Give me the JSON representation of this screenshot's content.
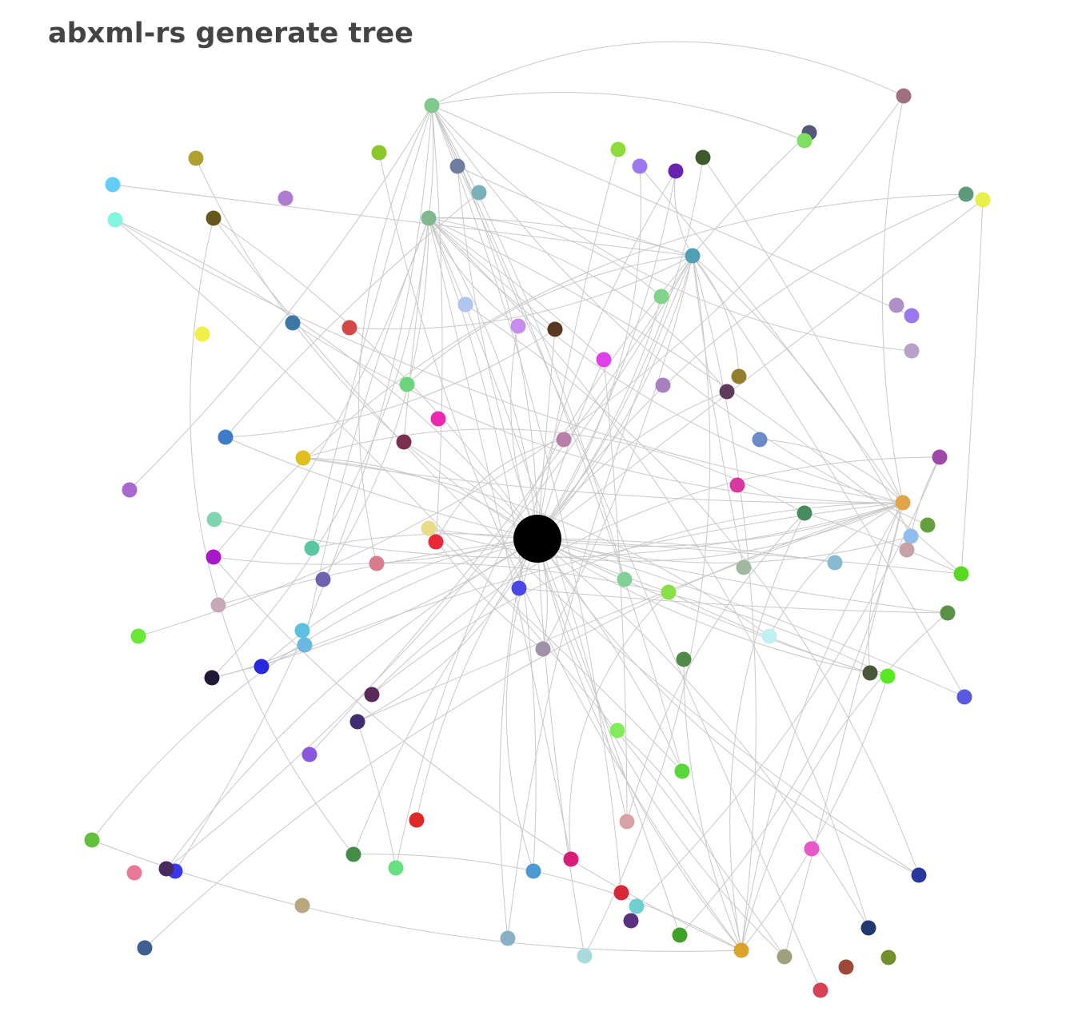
{
  "title": "abxml-rs generate tree",
  "graph": {
    "edge_color": "#c8c8c8",
    "root_color": "#000000",
    "hub_colors": [
      "#80b98d",
      "#4fa0b5",
      "#e0a548",
      "#dca32c",
      "#7fc98a"
    ],
    "node_colors": [
      "#a07080",
      "#545878",
      "#7ee060",
      "#e8f048",
      "#5c9a7a",
      "#8fdc38",
      "#9a78f0",
      "#6a22b0",
      "#3e5a2c",
      "#8cc72a",
      "#b0a030",
      "#63cdf7",
      "#80f7dc",
      "#64581e",
      "#b07cd2",
      "#6e7ea0",
      "#7ab0b8",
      "#f0f048",
      "#3d77a5",
      "#d44848",
      "#e8607c",
      "#c88cf0",
      "#5a3820",
      "#80d48a",
      "#e040e8",
      "#a780c0",
      "#937e2e",
      "#613c5a",
      "#6cd47a",
      "#ec28b0",
      "#b090c8",
      "#9a78f0",
      "#b8a0c8",
      "#6a8ac8",
      "#d838a0",
      "#a048a8",
      "#3c7cc8",
      "#7c3050",
      "#e0c020",
      "#b880a8",
      "#a868d0",
      "#80d4b0",
      "#e8dc88",
      "#ec2838",
      "#58c8a0",
      "#a818c8",
      "#d87c8c",
      "#7060b0",
      "#80d098",
      "#4848e8",
      "#88e048",
      "#a0b8a0",
      "#88bad0",
      "#4a8a60",
      "#64a040",
      "#90bcf0",
      "#c8a0a8",
      "#58d820",
      "#5a9048",
      "#c8a8b8",
      "#68e838",
      "#5cc0e0",
      "#6ab8e0",
      "#2828e0",
      "#201838",
      "#5a2a5a",
      "#a090a8",
      "#c0f0f0",
      "#508a48",
      "#485838",
      "#58e820",
      "#5858e0",
      "#402c70",
      "#80ec58",
      "#8a58e0",
      "#58d838",
      "#e02828",
      "#d8a0a8",
      "#62c03a",
      "#448c48",
      "#68e080",
      "#4c9ad0",
      "#d81c78",
      "#e858c8",
      "#2838a0",
      "#e87898",
      "#3838f0",
      "#4a2860",
      "#d82838",
      "#70d0d0",
      "#5a3080",
      "#b8a880",
      "#3e6090",
      "#40a028",
      "#223870",
      "#8ab0c8",
      "#a8dcdc",
      "#d84058",
      "#a0a080",
      "#a04838",
      "#70902c",
      "#b0c8f0"
    ]
  }
}
